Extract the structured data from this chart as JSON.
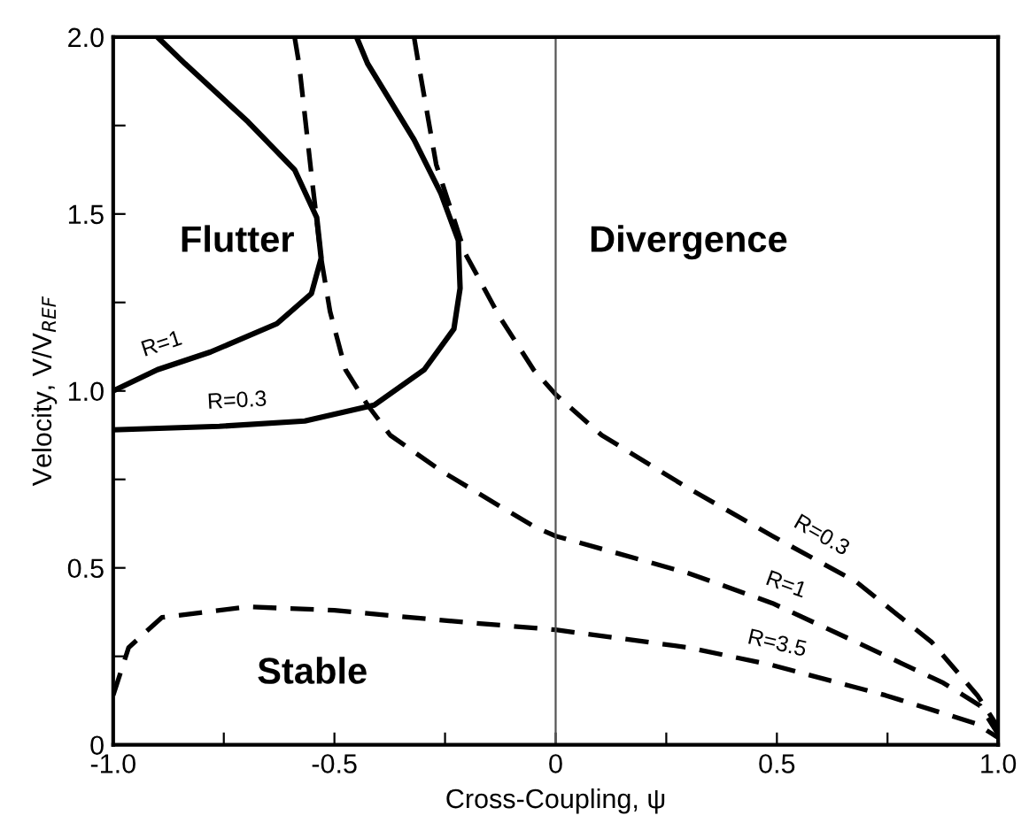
{
  "chart_data": {
    "type": "line",
    "xlabel": "Cross-Coupling, ψ",
    "ylabel": "Velocity, V/V$_{REF}$",
    "xlim": [
      -1,
      1
    ],
    "ylim": [
      0,
      2
    ],
    "xticks": [
      {
        "value": -1,
        "label": "-1.0"
      },
      {
        "value": -0.75,
        "label": null
      },
      {
        "value": -0.5,
        "label": "-0.5"
      },
      {
        "value": -0.25,
        "label": null
      },
      0,
      {
        "value": 0.25,
        "label": null
      },
      0.5,
      {
        "value": 0.75,
        "label": null
      },
      {
        "value": 1,
        "label": "1.0"
      }
    ],
    "yticks": [
      0,
      {
        "value": 0.25,
        "label": null
      },
      0.5,
      {
        "value": 0.75,
        "label": null
      },
      {
        "value": 1,
        "label": "1.0"
      },
      {
        "value": 1.25,
        "label": null
      },
      1.5,
      {
        "value": 1.75,
        "label": null
      },
      {
        "value": 2,
        "label": "2.0"
      }
    ],
    "grid": false,
    "legend": false,
    "marker": "none",
    "series": [
      {
        "color": "#000000",
        "line_style": "solid",
        "x": [
          -0.9,
          -0.838,
          -0.695,
          -0.59,
          -0.54,
          -0.53,
          -0.552,
          -0.63,
          -0.78,
          -0.9,
          -1.0
        ],
        "values": [
          2.0,
          1.925,
          1.76,
          1.625,
          1.49,
          1.375,
          1.275,
          1.19,
          1.11,
          1.06,
          1.0
        ]
      },
      {
        "color": "#000000",
        "line_style": "solid",
        "x": [
          -0.45,
          -0.425,
          -0.32,
          -0.26,
          -0.22,
          -0.216,
          -0.23,
          -0.297,
          -0.41,
          -0.567,
          -0.76,
          -1.0
        ],
        "values": [
          2.0,
          1.925,
          1.71,
          1.56,
          1.425,
          1.29,
          1.175,
          1.06,
          0.96,
          0.915,
          0.9,
          0.89
        ]
      },
      {
        "color": "#000000",
        "line_style": "dashed",
        "x": [
          -0.59,
          -0.58,
          -0.55,
          -0.53,
          -0.51,
          -0.475,
          -0.425,
          -0.374,
          -0.26,
          -0.127,
          -0.046,
          0,
          0.3,
          0.49,
          0.68,
          0.876,
          0.96,
          1.0
        ],
        "values": [
          2.0,
          1.925,
          1.59,
          1.375,
          1.225,
          1.06,
          0.96,
          0.875,
          0.775,
          0.675,
          0.615,
          0.59,
          0.485,
          0.4,
          0.29,
          0.175,
          0.11,
          0.03
        ]
      },
      {
        "color": "#000000",
        "line_style": "dashed",
        "x": [
          -0.32,
          -0.31,
          -0.27,
          -0.205,
          -0.127,
          -0.05,
          0,
          0.104,
          0.3,
          0.49,
          0.68,
          0.85,
          0.953,
          1.0
        ],
        "values": [
          2.0,
          1.925,
          1.64,
          1.39,
          1.21,
          1.06,
          0.99,
          0.875,
          0.725,
          0.59,
          0.46,
          0.29,
          0.14,
          0.05
        ]
      },
      {
        "color": "#000000",
        "line_style": "dashed",
        "x": [
          -1.0,
          -0.965,
          -0.89,
          -0.695,
          -0.5,
          -0.24,
          0,
          0.3,
          0.49,
          0.745,
          0.95,
          1.0
        ],
        "values": [
          0.14,
          0.275,
          0.36,
          0.39,
          0.38,
          0.35,
          0.325,
          0.275,
          0.225,
          0.14,
          0.06,
          0.02
        ]
      }
    ],
    "ref_lines": [
      {
        "axis": "x",
        "value": 0,
        "color": "#555555",
        "line_style": "solid"
      }
    ],
    "annotations": [
      "Flutter",
      "Divergence",
      "Stable",
      "R=1",
      "R=0.3",
      "R=0.3",
      "R=1",
      "R=3.5"
    ]
  }
}
